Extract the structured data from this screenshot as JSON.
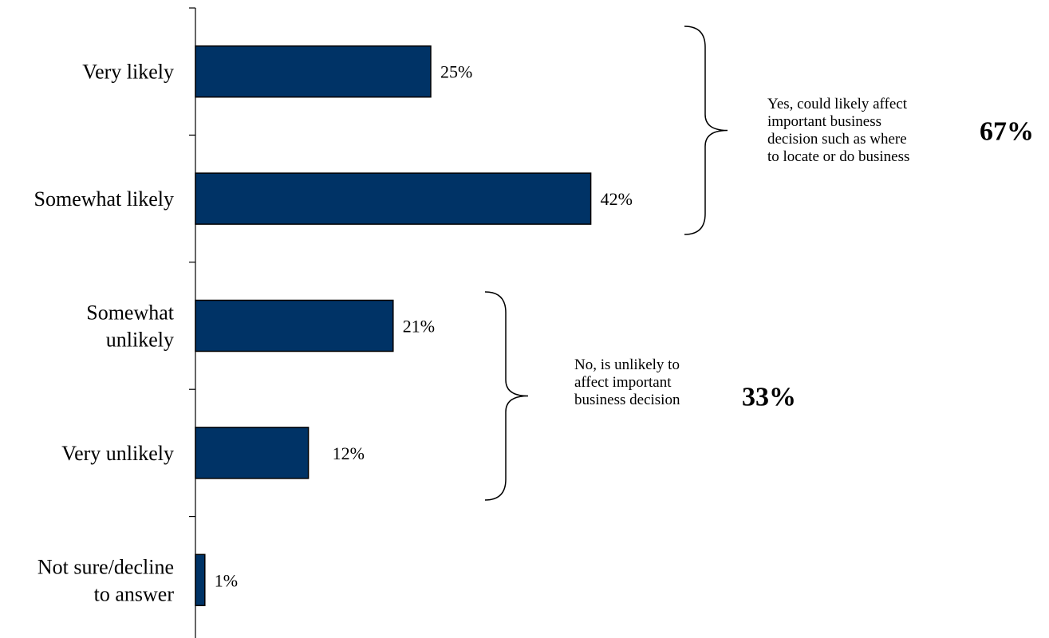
{
  "chart_data": {
    "type": "bar",
    "orientation": "horizontal",
    "categories": [
      [
        "Very likely"
      ],
      [
        "Somewhat likely"
      ],
      [
        "Somewhat",
        "unlikely"
      ],
      [
        "Very unlikely"
      ],
      [
        "Not sure/decline",
        "to answer"
      ]
    ],
    "values": [
      25,
      42,
      21,
      12,
      1
    ],
    "value_labels": [
      "25%",
      "42%",
      "21%",
      "12%",
      "1%"
    ],
    "unit": "%",
    "xlim": [
      0,
      100
    ],
    "bar_color": "#003366",
    "groups": [
      {
        "categories": [
          0,
          1
        ],
        "text": [
          "Yes, could likely affect",
          "important business",
          "decision such as where",
          "to locate or do business"
        ],
        "total": "67%"
      },
      {
        "categories": [
          2,
          3
        ],
        "text": [
          "No, is unlikely to",
          "affect important",
          "business decision"
        ],
        "total": "33%"
      }
    ]
  }
}
